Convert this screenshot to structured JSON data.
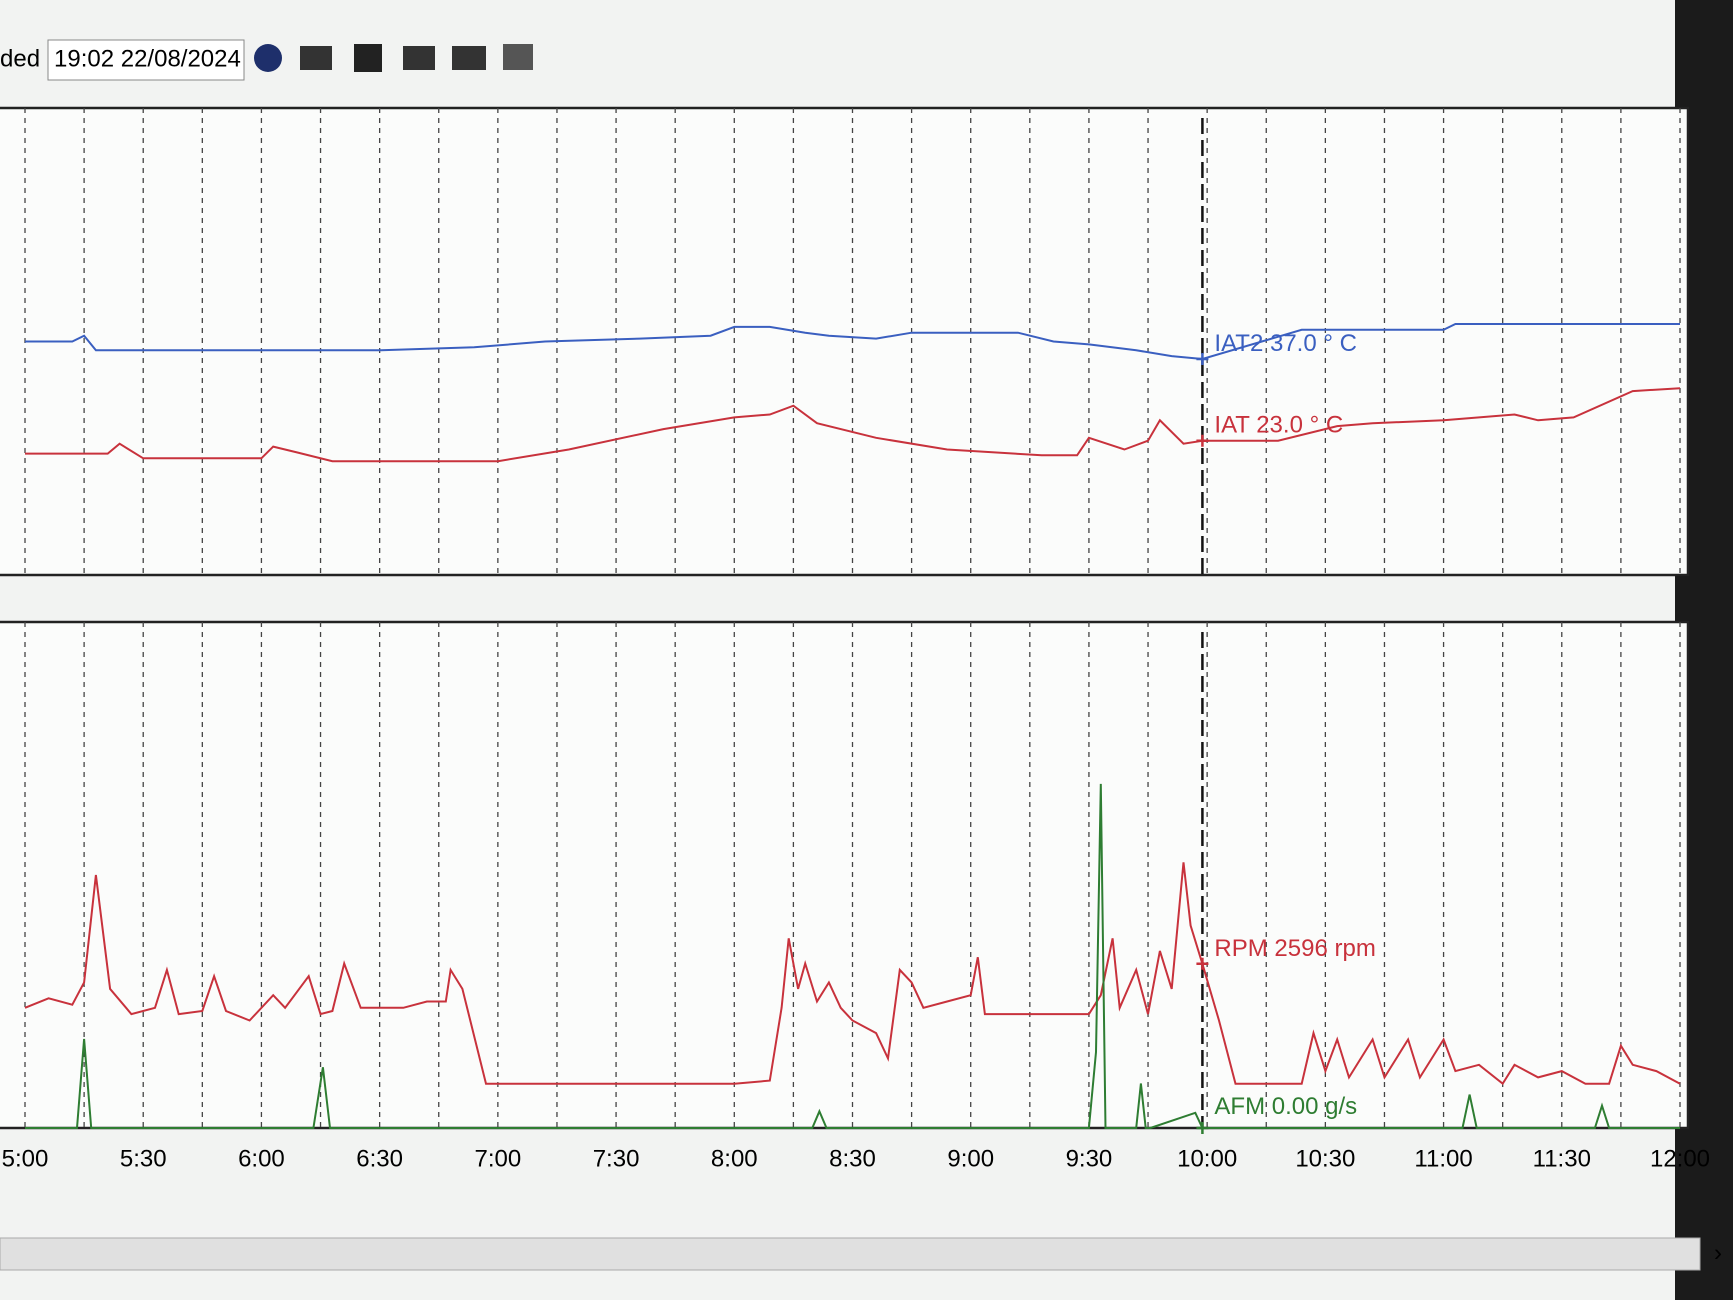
{
  "toolbar": {
    "label": "ded",
    "datetime": "19:02 22/08/2024"
  },
  "chart_data": [
    {
      "type": "line",
      "xlim": [
        5,
        12
      ],
      "ylim": [
        0,
        80
      ],
      "grid": true,
      "cursor_x": 9.98,
      "series": [
        {
          "name": "IAT2",
          "color": "#3a5fc0",
          "cursor_value": 37.0,
          "cursor_value_label": "37.0 ° C",
          "x": [
            5,
            5.2,
            5.25,
            5.3,
            6.5,
            6.9,
            7.2,
            7.6,
            7.9,
            8.0,
            8.15,
            8.3,
            8.4,
            8.6,
            8.75,
            9.2,
            9.35,
            9.5,
            9.7,
            9.85,
            9.98,
            10.4,
            11.0,
            11.05,
            12.0
          ],
          "values": [
            40,
            40,
            41,
            38.5,
            38.5,
            39,
            40,
            40.5,
            41,
            42.5,
            42.5,
            41.5,
            41,
            40.5,
            41.5,
            41.5,
            40,
            39.5,
            38.5,
            37.5,
            37,
            42,
            42,
            43,
            43
          ]
        },
        {
          "name": "IAT",
          "color": "#c8323c",
          "cursor_value": 23.0,
          "cursor_value_label": "23.0 ° C",
          "x": [
            5,
            5.35,
            5.4,
            5.5,
            6,
            6.05,
            6.15,
            6.3,
            7.0,
            7.3,
            7.7,
            8.0,
            8.15,
            8.25,
            8.35,
            8.6,
            8.9,
            9.3,
            9.45,
            9.5,
            9.65,
            9.75,
            9.8,
            9.9,
            9.98,
            10.3,
            10.55,
            10.7,
            11.0,
            11.3,
            11.4,
            11.55,
            11.8,
            12.0
          ],
          "values": [
            20.8,
            20.8,
            22.5,
            20,
            20,
            22,
            21,
            19.5,
            19.5,
            21.5,
            25,
            27,
            27.5,
            29,
            26,
            23.5,
            21.5,
            20.5,
            20.5,
            23.5,
            21.5,
            23,
            26.5,
            22.5,
            23,
            23,
            25.5,
            26,
            26.5,
            27.5,
            26.5,
            27,
            31.5,
            32
          ]
        }
      ]
    },
    {
      "type": "line",
      "xlim": [
        5,
        12
      ],
      "ylim": [
        0,
        8000
      ],
      "y2lim": [
        0,
        100
      ],
      "grid": true,
      "cursor_x": 9.98,
      "xticks": [
        {
          "value": 5,
          "label": "5:00"
        },
        {
          "value": 5.5,
          "label": "5:30"
        },
        {
          "value": 6,
          "label": "6:00"
        },
        {
          "value": 6.5,
          "label": "6:30"
        },
        {
          "value": 7,
          "label": "7:00"
        },
        {
          "value": 7.5,
          "label": "7:30"
        },
        {
          "value": 8,
          "label": "8:00"
        },
        {
          "value": 8.5,
          "label": "8:30"
        },
        {
          "value": 9,
          "label": "9:00"
        },
        {
          "value": 9.5,
          "label": "9:30"
        },
        {
          "value": 10,
          "label": "10:00"
        },
        {
          "value": 10.5,
          "label": "10:30"
        },
        {
          "value": 11,
          "label": "11:00"
        },
        {
          "value": 11.5,
          "label": "11:30"
        },
        {
          "value": 12,
          "label": "12:00"
        }
      ],
      "series": [
        {
          "name": "RPM",
          "color": "#c8323c",
          "cursor_value": 2596,
          "cursor_value_label": "2596 rpm",
          "x": [
            5.0,
            5.1,
            5.2,
            5.25,
            5.3,
            5.36,
            5.45,
            5.55,
            5.6,
            5.65,
            5.75,
            5.8,
            5.85,
            5.95,
            6.05,
            6.1,
            6.2,
            6.25,
            6.3,
            6.35,
            6.42,
            6.6,
            6.7,
            6.78,
            6.8,
            6.85,
            6.95,
            7.5,
            8.0,
            8.15,
            8.2,
            8.23,
            8.27,
            8.3,
            8.35,
            8.4,
            8.45,
            8.5,
            8.6,
            8.65,
            8.7,
            8.75,
            8.8,
            8.9,
            9.0,
            9.03,
            9.06,
            9.2,
            9.5,
            9.55,
            9.6,
            9.63,
            9.7,
            9.75,
            9.8,
            9.85,
            9.9,
            9.93,
            9.98,
            10.05,
            10.12,
            10.4,
            10.45,
            10.5,
            10.55,
            10.6,
            10.7,
            10.75,
            10.85,
            10.9,
            11.0,
            11.05,
            11.15,
            11.25,
            11.3,
            11.4,
            11.5,
            11.6,
            11.7,
            11.75,
            11.8,
            11.9,
            12.0
          ],
          "values": [
            1900,
            2050,
            1950,
            2300,
            4000,
            2200,
            1800,
            1900,
            2500,
            1800,
            1850,
            2400,
            1850,
            1700,
            2100,
            1900,
            2400,
            1800,
            1850,
            2600,
            1900,
            1900,
            2000,
            2000,
            2500,
            2200,
            700,
            700,
            700,
            750,
            1900,
            3000,
            2200,
            2600,
            2000,
            2300,
            1900,
            1700,
            1500,
            1100,
            2500,
            2300,
            1900,
            2000,
            2100,
            2700,
            1800,
            1800,
            1800,
            2100,
            3000,
            1900,
            2500,
            1800,
            2800,
            2200,
            4200,
            3200,
            2596,
            1700,
            700,
            700,
            1500,
            900,
            1400,
            800,
            1400,
            800,
            1400,
            800,
            1400,
            900,
            1000,
            700,
            1000,
            800,
            900,
            700,
            700,
            1300,
            1000,
            900,
            700
          ]
        },
        {
          "name": "AFM",
          "color": "#2e7d32",
          "axis": "y2",
          "cursor_value": 0.0,
          "cursor_value_label": "0.00 g/s",
          "x": [
            5.0,
            5.22,
            5.25,
            5.28,
            6.22,
            6.26,
            6.29,
            8.33,
            8.36,
            8.39,
            9.5,
            9.53,
            9.55,
            9.57,
            9.6,
            9.7,
            9.72,
            9.74,
            9.76,
            9.95,
            9.98,
            11.08,
            11.11,
            11.14,
            11.64,
            11.67,
            11.7,
            12.0
          ],
          "values": [
            0,
            0,
            17.6,
            0,
            0,
            12,
            0,
            0,
            3.3,
            0,
            0,
            15,
            68,
            0,
            0,
            0,
            8.8,
            0,
            0,
            3,
            0,
            0,
            6.6,
            0,
            0,
            4.4,
            0,
            0
          ]
        }
      ]
    }
  ]
}
